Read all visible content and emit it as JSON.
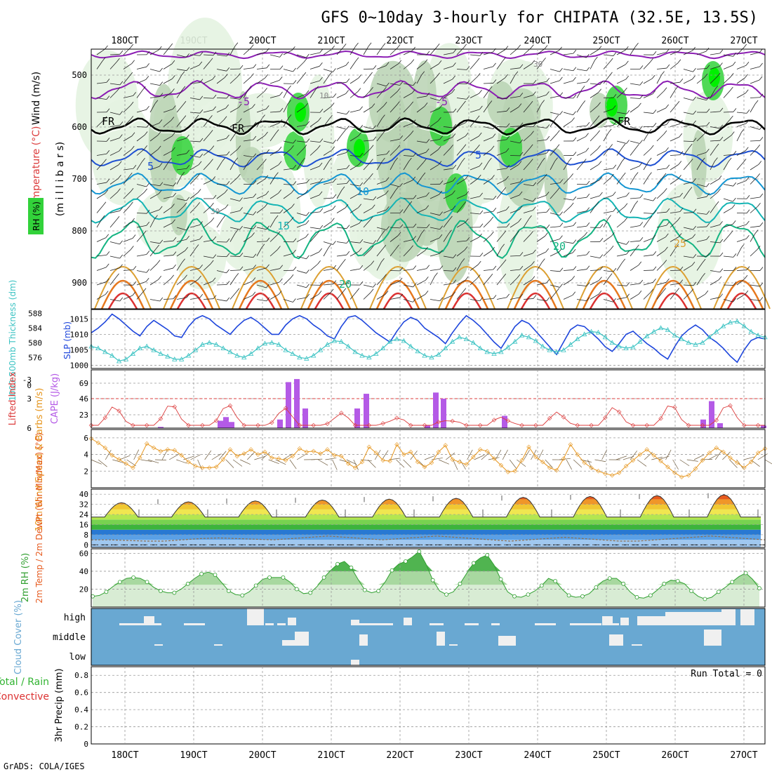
{
  "chart_data": {
    "type": "line",
    "title": "GFS 0~10day 3-hourly for CHIPATA (32.5E, 13.5S)",
    "footer": "GrADS: COLA/IGES",
    "x_dates": [
      "18OCT",
      "19OCT",
      "20OCT",
      "21OCT",
      "22OCT",
      "23OCT",
      "24OCT",
      "25OCT",
      "26OCT",
      "27OCT"
    ],
    "colors": {
      "rh_light": "#e4f3e1",
      "rh_mid": "#b9d2b3",
      "rh_dark": "#8ea68c",
      "rh_green": "#32d23a",
      "rh_bright": "#00f000",
      "freezing": "#000000",
      "neg": "#8c1eb4",
      "t5": "#1e50d2",
      "t10": "#1496d2",
      "t15": "#14b4b4",
      "t20": "#14b482",
      "t25": "#dca032",
      "t30": "#e6781e",
      "t35": "#dc3232",
      "slp": "#1e46dc",
      "thick": "#3cc3c3",
      "lifted": "#dc3c3c",
      "cape": "#b45ae6",
      "wind10": "#e6961e",
      "barb": "#6e5a3c",
      "rh2m": "#32a032",
      "cloud": "#69a8d2"
    },
    "panels": [
      {
        "id": "upper",
        "type": "contour",
        "y_labels": [
          "Wind (m/s)",
          "Temperature (°C)",
          "RH (%)",
          "(m i l l i b a r s)"
        ],
        "y_ticks": [
          500,
          600,
          700,
          800,
          900
        ],
        "contour_labels": [
          "-5",
          "FR",
          "5",
          "10",
          "15",
          "20",
          "25"
        ],
        "rh_labels": [
          "10",
          "30"
        ]
      },
      {
        "id": "slp",
        "type": "line",
        "ylabel_left": "1000-500mb Thickness (dm)",
        "ylabel_right": "SLP (mb)",
        "thickness_ticks": [
          576,
          580,
          584,
          588
        ],
        "slp_ticks": [
          1000,
          1005,
          1010,
          1015
        ],
        "slp": [
          1010.5,
          1012,
          1014,
          1016.5,
          1015,
          1013,
          1011,
          1009.5,
          1012.5,
          1014.5,
          1013,
          1011.5,
          1009.5,
          1009,
          1012.5,
          1015,
          1016,
          1015,
          1013,
          1011.5,
          1010,
          1012.5,
          1014.5,
          1015.5,
          1014,
          1012,
          1010,
          1010,
          1013,
          1015,
          1016,
          1015,
          1013,
          1011.5,
          1009.5,
          1008.5,
          1012.5,
          1015.5,
          1016,
          1014.5,
          1012.5,
          1010.5,
          1009,
          1007.5,
          1011,
          1014,
          1015.5,
          1014.5,
          1012,
          1010.5,
          1009,
          1007,
          1010.5,
          1013.5,
          1016,
          1014.5,
          1012.5,
          1010,
          1007.5,
          1005.5,
          1009,
          1012.5,
          1014.5,
          1013.5,
          1011,
          1008.5,
          1006,
          1003.5,
          1007.5,
          1011.5,
          1013,
          1012.5,
          1010.5,
          1008.5,
          1006,
          1004.5,
          1007,
          1010,
          1011,
          1009,
          1007,
          1005.5,
          1003.5,
          1002,
          1006,
          1009.5,
          1011.5,
          1013,
          1011.5,
          1009,
          1007.5,
          1005.5,
          1003,
          1001,
          1005,
          1008,
          1009,
          1008.5
        ],
        "thickness": [
          579,
          578.5,
          577.5,
          576.5,
          575,
          575.5,
          577,
          578.5,
          579,
          578,
          577,
          576.3,
          575.5,
          575.5,
          576.5,
          578,
          579.5,
          580,
          579.5,
          578.5,
          577.5,
          576.5,
          576,
          577,
          578.5,
          579.8,
          580,
          579.5,
          578,
          577,
          576,
          575.7,
          576.5,
          578,
          579.5,
          580.5,
          580.3,
          579,
          577.5,
          576.5,
          576,
          577,
          578.5,
          580.3,
          581,
          580.5,
          579,
          577.7,
          576.5,
          576,
          576.8,
          578.5,
          580.3,
          581.5,
          581,
          580,
          578.5,
          577.5,
          577,
          577.5,
          578.8,
          580.3,
          582,
          581.5,
          580.5,
          579,
          578,
          577.5,
          578,
          579.5,
          581,
          582.3,
          583,
          582.8,
          581.5,
          580,
          579,
          578.5,
          578.8,
          580.3,
          581.8,
          583,
          584,
          583.5,
          582,
          581,
          580,
          579.5,
          580,
          581.5,
          583,
          584.5,
          585.5,
          585.8,
          584.5,
          583,
          582,
          581.5
        ]
      },
      {
        "id": "instability",
        "type": "bar",
        "ylabel_left": "Lifted Index",
        "ylabel_right": "CAPE (J/kg)",
        "li_ticks": [
          "-3",
          "0",
          "3",
          "6"
        ],
        "cape_ticks": [
          23,
          46,
          69
        ],
        "lifted_index": [],
        "cape": []
      },
      {
        "id": "wind10",
        "type": "line",
        "ylabel": "10m Wind Speed & Barbs (m/s)",
        "y_ticks": [
          2,
          4,
          6
        ],
        "speed": [
          5.9,
          5.4,
          4.8,
          3.9,
          3.4,
          2.9,
          2.4,
          3.6,
          5.3,
          4.8,
          4.4,
          4.6,
          4.5,
          3.9,
          3.1,
          2.6,
          2.4,
          2.4,
          2.5,
          3.4,
          4.6,
          3.8,
          4.1,
          4.6,
          4.0,
          4.3,
          3.6,
          3.5,
          3.3,
          3.8,
          4.7,
          4.3,
          4.4,
          4.1,
          4.6,
          3.9,
          3.8,
          2.9,
          2.4,
          3.1,
          4.9,
          4.2,
          3.3,
          3.2,
          5.2,
          4.0,
          4.3,
          3.1,
          2.5,
          3.0,
          4.3,
          5.1,
          3.4,
          3.1,
          2.8,
          3.7,
          4.6,
          4.4,
          3.5,
          2.7,
          1.9,
          2.0,
          3.3,
          4.9,
          3.7,
          3.1,
          2.4,
          2.1,
          3.5,
          5.2,
          4.0,
          3.0,
          2.4,
          2.0,
          1.7,
          1.5,
          1.8,
          2.6,
          3.3,
          4.0,
          4.6,
          3.9,
          3.2,
          2.5,
          1.8,
          1.3,
          1.5,
          2.3,
          3.3,
          4.2,
          4.8,
          4.3,
          3.6,
          3.0,
          2.4,
          3.1,
          4.2,
          4.7
        ]
      },
      {
        "id": "temp2m",
        "type": "area",
        "ylabel": "2m Temp / 2m DewPt (6hr Min/Max) (°C)",
        "y_ticks": [
          0,
          8,
          16,
          24,
          32,
          40
        ],
        "min_temp": [
          22,
          22,
          22,
          22,
          22,
          22,
          22,
          21,
          22,
          22,
          22,
          22,
          22,
          22,
          22,
          21
        ],
        "max_temp": [
          31,
          31.5,
          32,
          32.5,
          33,
          34,
          35,
          36,
          37,
          38,
          39,
          40
        ],
        "dewpt": [
          4,
          4,
          3.5,
          3,
          3,
          4,
          5,
          5.5,
          5,
          4.5,
          4,
          5,
          6,
          7,
          6,
          5,
          4,
          5,
          6,
          7,
          6,
          5,
          4,
          3,
          4,
          5,
          6,
          5,
          4,
          3,
          3,
          4,
          5,
          6,
          7,
          6,
          5,
          4
        ]
      },
      {
        "id": "rh2m",
        "type": "area",
        "ylabel": "2m RH (%)",
        "y_ticks": [
          20,
          40,
          60
        ],
        "rh": [
          12,
          13,
          17,
          23,
          28,
          32,
          33,
          32,
          28,
          22,
          18,
          16,
          16,
          20,
          26,
          32,
          37,
          39,
          36,
          27,
          18,
          14,
          13,
          17,
          24,
          31,
          33,
          33,
          33,
          28,
          20,
          15,
          16,
          23,
          33,
          41,
          48,
          51,
          44,
          31,
          19,
          16,
          18,
          28,
          41,
          48,
          51,
          56,
          62,
          48,
          30,
          18,
          14,
          17,
          26,
          38,
          49,
          55,
          58,
          47,
          31,
          17,
          12,
          11,
          14,
          18,
          24,
          32,
          29,
          20,
          13,
          11,
          12,
          15,
          22,
          29,
          32,
          32,
          26,
          17,
          11,
          10,
          13,
          19,
          26,
          30,
          29,
          26,
          18,
          12,
          9,
          11,
          17,
          22,
          28,
          34,
          38,
          31,
          21
        ]
      },
      {
        "id": "cloud",
        "type": "heatmap",
        "ylabel": "Cloud Cover (%)",
        "levels": [
          "high",
          "middle",
          "low"
        ]
      },
      {
        "id": "precip",
        "type": "bar",
        "ylabel": "3hr Precip (mm)",
        "ylabel_left": "Total / Rain",
        "ylabel_left2": "Convective",
        "y_ticks": [
          0,
          0.2,
          0.4,
          0.6,
          0.8
        ],
        "run_total": "Run Total = 0"
      }
    ]
  }
}
